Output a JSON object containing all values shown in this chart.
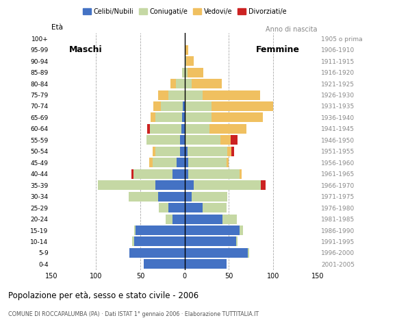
{
  "age_groups": [
    "0-4",
    "5-9",
    "10-14",
    "15-19",
    "20-24",
    "25-29",
    "30-34",
    "35-39",
    "40-44",
    "45-49",
    "50-54",
    "55-59",
    "60-64",
    "65-69",
    "70-74",
    "75-79",
    "80-84",
    "85-89",
    "90-94",
    "95-99",
    "100+"
  ],
  "birth_years": [
    "2001-2005",
    "1996-2000",
    "1991-1995",
    "1986-1990",
    "1981-1985",
    "1976-1980",
    "1971-1975",
    "1966-1970",
    "1961-1965",
    "1956-1960",
    "1951-1955",
    "1946-1950",
    "1941-1945",
    "1936-1940",
    "1931-1935",
    "1926-1930",
    "1921-1925",
    "1916-1920",
    "1911-1915",
    "1906-1910",
    "1905 o prima"
  ],
  "male": {
    "celibi": [
      46,
      62,
      57,
      55,
      14,
      18,
      30,
      33,
      14,
      9,
      5,
      5,
      4,
      3,
      2,
      0,
      0,
      0,
      0,
      0,
      0
    ],
    "coniugati": [
      0,
      0,
      2,
      2,
      7,
      11,
      33,
      65,
      44,
      27,
      28,
      38,
      35,
      30,
      25,
      18,
      10,
      3,
      0,
      0,
      0
    ],
    "vedovi": [
      0,
      0,
      0,
      0,
      0,
      0,
      0,
      0,
      0,
      4,
      3,
      0,
      0,
      5,
      8,
      12,
      6,
      0,
      0,
      0,
      0
    ],
    "divorziati": [
      0,
      0,
      0,
      0,
      0,
      0,
      0,
      0,
      2,
      0,
      0,
      0,
      3,
      0,
      0,
      0,
      0,
      0,
      0,
      0,
      0
    ]
  },
  "female": {
    "nubili": [
      47,
      71,
      58,
      62,
      43,
      20,
      8,
      10,
      4,
      4,
      3,
      0,
      0,
      0,
      0,
      0,
      0,
      0,
      0,
      0,
      0
    ],
    "coniugate": [
      0,
      2,
      2,
      4,
      16,
      27,
      40,
      76,
      58,
      43,
      45,
      40,
      28,
      30,
      30,
      20,
      8,
      3,
      2,
      0,
      0
    ],
    "vedove": [
      0,
      0,
      0,
      0,
      0,
      0,
      0,
      0,
      2,
      3,
      5,
      12,
      42,
      58,
      70,
      65,
      34,
      18,
      8,
      4,
      0
    ],
    "divorziate": [
      0,
      0,
      0,
      0,
      0,
      0,
      0,
      5,
      0,
      0,
      3,
      8,
      0,
      0,
      0,
      0,
      0,
      0,
      0,
      0,
      0
    ]
  },
  "colors": {
    "celibi": "#4472c4",
    "coniugati": "#c5d8a4",
    "vedovi": "#f0c060",
    "divorziati": "#cc2222"
  },
  "xlim": 150,
  "title": "Popolazione per età, sesso e stato civile - 2006",
  "subtitle": "COMUNE DI ROCCAPALUMBA (PA) · Dati ISTAT 1° gennaio 2006 · Elaborazione TUTTITALIA.IT",
  "legend_labels": [
    "Celibi/Nubili",
    "Coniugati/e",
    "Vedovi/e",
    "Divorziati/e"
  ],
  "ylabel_left": "Età",
  "ylabel_right": "Anno di nascita",
  "label_maschi": "Maschi",
  "label_femmine": "Femmine"
}
